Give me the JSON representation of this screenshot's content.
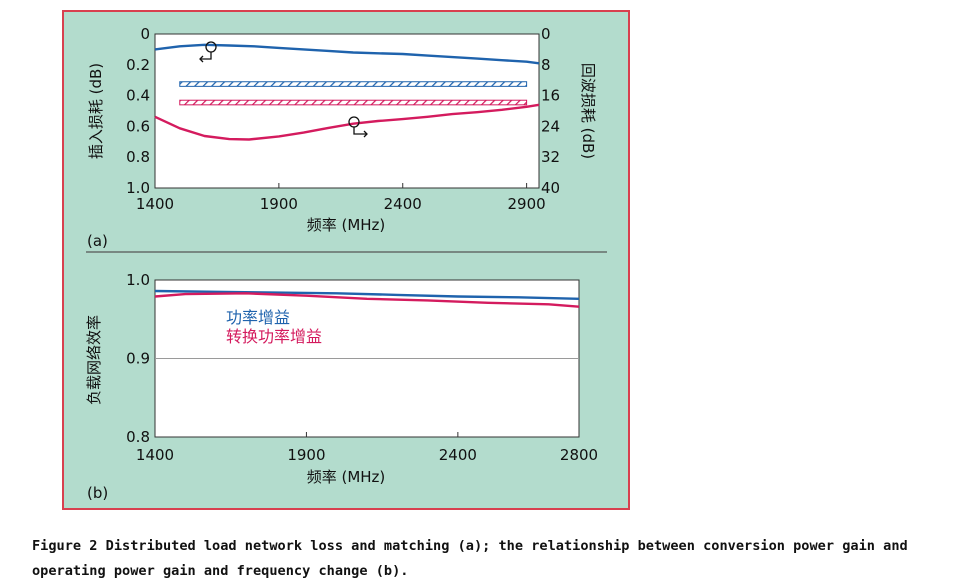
{
  "colors": {
    "panel_bg": "#b3dccd",
    "frame": "#d8404f",
    "plot_bg": "#ffffff",
    "blue": "#1f63ad",
    "magenta": "#d41b5e",
    "divider": "#555555"
  },
  "caption": "Figure 2 Distributed load network loss and matching (a); the relationship between conversion power gain and operating power gain and frequency change (b).",
  "chart_data": [
    {
      "type": "line",
      "panel_label": "(a)",
      "xlabel": "频率 (MHz)",
      "ylabel": "插入损耗 (dB)",
      "y2label": "回波损耗 (dB)",
      "xlim": [
        1400,
        2950
      ],
      "ylim": [
        1.0,
        0
      ],
      "y2lim": [
        40,
        0
      ],
      "x_ticks": [
        1400,
        1900,
        2400,
        2900
      ],
      "x_tick_labels": [
        "1400",
        "1900",
        "2400",
        "2900"
      ],
      "y_ticks": [
        0,
        0.2,
        0.4,
        0.6,
        0.8,
        1.0
      ],
      "y_tick_labels": [
        "0",
        "0.2",
        "0.4",
        "0.6",
        "0.8",
        "1.0"
      ],
      "y2_ticks": [
        0,
        8,
        16,
        24,
        32,
        40
      ],
      "y2_tick_labels": [
        "0",
        "8",
        "16",
        "24",
        "32",
        "40"
      ],
      "grid": false,
      "series": [
        {
          "axis": "left",
          "color": "#1f63ad",
          "x": [
            1400,
            1500,
            1600,
            1700,
            1800,
            1900,
            2000,
            2100,
            2200,
            2300,
            2400,
            2500,
            2600,
            2700,
            2800,
            2900,
            2950
          ],
          "y": [
            0.1,
            0.08,
            0.07,
            0.075,
            0.08,
            0.09,
            0.1,
            0.11,
            0.12,
            0.125,
            0.13,
            0.14,
            0.15,
            0.16,
            0.17,
            0.18,
            0.19
          ]
        },
        {
          "axis": "right",
          "color": "#d41b5e",
          "x": [
            1400,
            1500,
            1600,
            1700,
            1780,
            1900,
            2000,
            2100,
            2200,
            2300,
            2400,
            2500,
            2600,
            2700,
            2800,
            2900,
            2950
          ],
          "y": [
            21.5,
            24.5,
            26.5,
            27.3,
            27.4,
            26.6,
            25.6,
            24.4,
            23.3,
            22.6,
            22.1,
            21.5,
            20.8,
            20.3,
            19.7,
            18.9,
            18.4
          ]
        }
      ],
      "bands": [
        {
          "axis": "left",
          "x": [
            1500,
            2900
          ],
          "y": [
            0.31,
            0.34
          ],
          "color": "#1f63ad"
        },
        {
          "axis": "left",
          "x": [
            1500,
            2900
          ],
          "y": [
            0.43,
            0.46
          ],
          "color": "#d41b5e"
        }
      ]
    },
    {
      "type": "line",
      "panel_label": "(b)",
      "xlabel": "频率 (MHz)",
      "ylabel": "负载网络效率",
      "xlim": [
        1400,
        2800
      ],
      "ylim": [
        0.8,
        1.0
      ],
      "x_ticks": [
        1400,
        1900,
        2400,
        2800
      ],
      "x_tick_labels": [
        "1400",
        "1900",
        "2400",
        "2800"
      ],
      "y_ticks": [
        0.8,
        0.9,
        1.0
      ],
      "y_tick_labels": [
        "0.8",
        "0.9",
        "1.0"
      ],
      "grid": true,
      "legend": "top-left",
      "series": [
        {
          "name": "功率增益",
          "color": "#1f63ad",
          "x": [
            1400,
            1600,
            1800,
            2000,
            2200,
            2400,
            2600,
            2800
          ],
          "y": [
            0.986,
            0.985,
            0.984,
            0.983,
            0.981,
            0.979,
            0.978,
            0.976
          ]
        },
        {
          "name": "转换功率增益",
          "color": "#d41b5e",
          "x": [
            1400,
            1500,
            1700,
            1900,
            2100,
            2300,
            2500,
            2700,
            2800
          ],
          "y": [
            0.979,
            0.982,
            0.983,
            0.98,
            0.976,
            0.974,
            0.971,
            0.969,
            0.966
          ]
        }
      ]
    }
  ]
}
